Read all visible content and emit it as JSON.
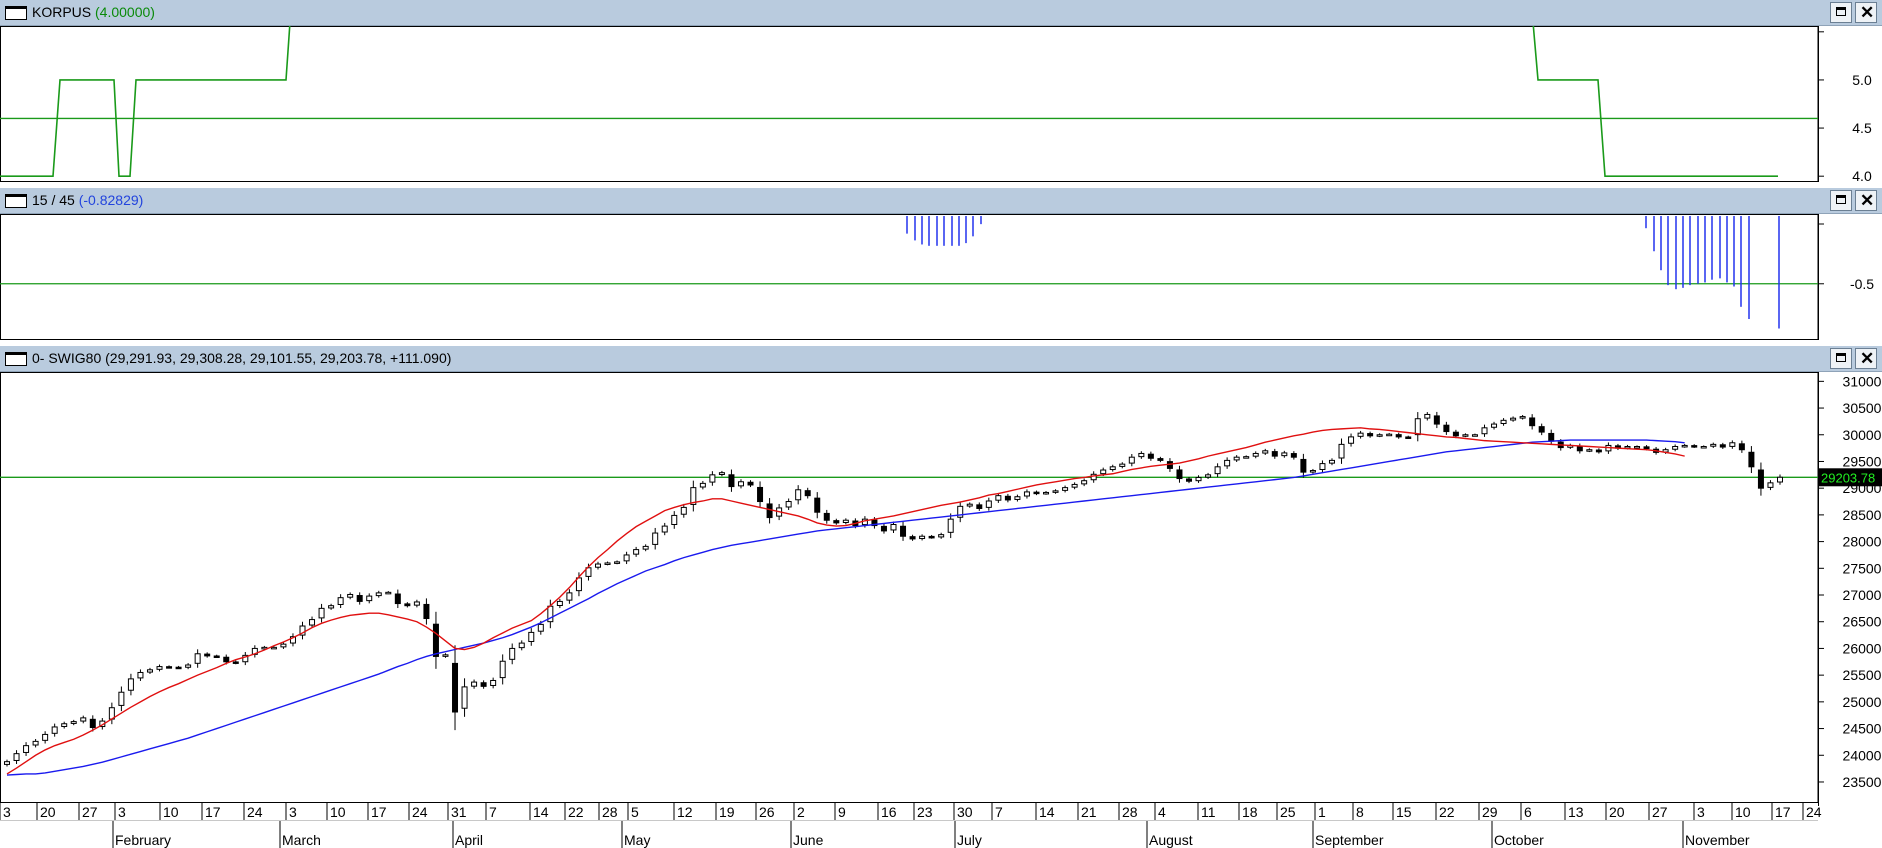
{
  "panels": {
    "korpus": {
      "title": "KORPUS",
      "value": "(4.00000)",
      "value_color": "#0a8a0a",
      "y_ticks": [
        "5.0",
        "4.5",
        "4.0"
      ]
    },
    "ratio": {
      "title": "15 / 45",
      "value": "(-0.82829)",
      "value_color": "#2244dd",
      "y_ticks": [
        "-0.5"
      ]
    },
    "price": {
      "title": "0- SWIG80 (29,291.93, 29,308.28, 29,101.55, 29,203.78, +111.090)",
      "last_value_label": "29203.78",
      "y_ticks": [
        "31000",
        "30500",
        "30000",
        "29500",
        "29000",
        "28500",
        "28000",
        "27500",
        "27000",
        "26500",
        "26000",
        "25500",
        "25000",
        "24500",
        "24000",
        "23500"
      ]
    }
  },
  "x_axis": {
    "day_ticks": [
      "3",
      "20",
      "27",
      "3",
      "10",
      "17",
      "24",
      "3",
      "10",
      "17",
      "24",
      "31",
      "7",
      "14",
      "22",
      "28",
      "5",
      "12",
      "19",
      "26",
      "2",
      "9",
      "16",
      "23",
      "30",
      "7",
      "14",
      "21",
      "28",
      "4",
      "11",
      "18",
      "25",
      "1",
      "8",
      "15",
      "22",
      "29",
      "6",
      "13",
      "20",
      "27",
      "3",
      "10",
      "17",
      "24"
    ],
    "months": [
      "February",
      "March",
      "April",
      "May",
      "June",
      "July",
      "August",
      "September",
      "October",
      "November"
    ]
  },
  "colors": {
    "korpus_line": "#1a9a1a",
    "reference_line": "#1a9a1a",
    "histogram": "#2233ee",
    "ma_fast": "#e01010",
    "ma_slow": "#1a1aee",
    "candle": "#000000",
    "last_label_bg": "#000000",
    "last_label_text": "#22ee22"
  },
  "window_buttons": {
    "maximize": "maximize-icon",
    "close": "✕"
  },
  "chart_data": [
    {
      "type": "line",
      "title": "KORPUS (4.00000)",
      "y_ticks": [
        5.0,
        4.5,
        4.0
      ],
      "ylim": [
        3.95,
        5.55
      ],
      "reference_line": 4.6,
      "segments": [
        [
          [
            0,
            4.0
          ],
          [
            53,
            4.0
          ],
          [
            60,
            5.0
          ],
          [
            114,
            5.0
          ],
          [
            119,
            4.0
          ],
          [
            130,
            4.0
          ],
          [
            136,
            5.0
          ],
          [
            286,
            5.0
          ],
          [
            290,
            5.6
          ]
        ],
        [
          [
            1533,
            5.6
          ],
          [
            1538,
            5.0
          ],
          [
            1598,
            5.0
          ],
          [
            1605,
            4.0
          ],
          [
            1778,
            4.0
          ]
        ]
      ]
    },
    {
      "type": "bar",
      "title": "15 / 45 (-0.82829)",
      "y_ticks": [
        -0.5
      ],
      "ylim": [
        -0.9,
        0.0
      ],
      "reference_line": -0.5,
      "bar_index_unit": "day_tick_offset",
      "bars": [
        {
          "t": 907,
          "v": -0.13
        },
        {
          "t": 915,
          "v": -0.18
        },
        {
          "t": 922,
          "v": -0.21
        },
        {
          "t": 929,
          "v": -0.22
        },
        {
          "t": 937,
          "v": -0.22
        },
        {
          "t": 944,
          "v": -0.22
        },
        {
          "t": 952,
          "v": -0.22
        },
        {
          "t": 959,
          "v": -0.22
        },
        {
          "t": 966,
          "v": -0.2
        },
        {
          "t": 973,
          "v": -0.15
        },
        {
          "t": 981,
          "v": -0.06
        },
        {
          "t": 1646,
          "v": -0.09
        },
        {
          "t": 1654,
          "v": -0.26
        },
        {
          "t": 1661,
          "v": -0.4
        },
        {
          "t": 1668,
          "v": -0.51
        },
        {
          "t": 1676,
          "v": -0.54
        },
        {
          "t": 1683,
          "v": -0.53
        },
        {
          "t": 1690,
          "v": -0.51
        },
        {
          "t": 1698,
          "v": -0.5
        },
        {
          "t": 1705,
          "v": -0.49
        },
        {
          "t": 1712,
          "v": -0.47
        },
        {
          "t": 1720,
          "v": -0.46
        },
        {
          "t": 1727,
          "v": -0.49
        },
        {
          "t": 1734,
          "v": -0.52
        },
        {
          "t": 1741,
          "v": -0.67
        },
        {
          "t": 1749,
          "v": -0.76
        },
        {
          "t": 1779,
          "v": -0.83
        }
      ]
    },
    {
      "type": "candlestick",
      "title": "SWIG80",
      "ylim": [
        23200,
        31100
      ],
      "y_ticks": [
        31000,
        30500,
        30000,
        29500,
        29000,
        28500,
        28000,
        27500,
        27000,
        26500,
        26000,
        25500,
        25000,
        24500,
        24000,
        23500
      ],
      "reference_line": 29203.78,
      "series_names": [
        "SWIG80"
      ],
      "close": [
        23880,
        24030,
        24180,
        24260,
        24390,
        24530,
        24590,
        24630,
        24700,
        24520,
        24640,
        24890,
        25180,
        25430,
        25550,
        25600,
        25660,
        25650,
        25640,
        25690,
        25900,
        25860,
        25850,
        25750,
        25730,
        25870,
        26000,
        26020,
        26020,
        26080,
        26220,
        26420,
        26540,
        26750,
        26800,
        26950,
        27010,
        26880,
        26980,
        27040,
        27050,
        26840,
        26800,
        26870,
        26560,
        25850,
        25880,
        24810,
        25280,
        25370,
        25290,
        25400,
        25760,
        26000,
        26100,
        26300,
        26450,
        26790,
        26880,
        27040,
        27320,
        27510,
        27580,
        27600,
        27620,
        27750,
        27850,
        27910,
        28160,
        28290,
        28490,
        28640,
        29010,
        29090,
        29250,
        29290,
        29030,
        29120,
        29060,
        28750,
        28450,
        28630,
        28750,
        28970,
        28860,
        28550,
        28400,
        28350,
        28400,
        28300,
        28420,
        28300,
        28200,
        28320,
        28100,
        28050,
        28100,
        28080,
        28130,
        28420,
        28660,
        28700,
        28620,
        28760,
        28860,
        28780,
        28840,
        28930,
        28900,
        28920,
        28950,
        29010,
        29070,
        29140,
        29260,
        29340,
        29400,
        29450,
        29580,
        29650,
        29560,
        29520,
        29370,
        29180,
        29130,
        29200,
        29250,
        29400,
        29520,
        29580,
        29590,
        29650,
        29700,
        29600,
        29660,
        29580,
        29300,
        29330,
        29460,
        29520,
        29820,
        29960,
        30030,
        29980,
        30000,
        30010,
        29960,
        29950,
        30300,
        30380,
        30200,
        30060,
        29980,
        30000,
        30000,
        30130,
        30200,
        30270,
        30310,
        30340,
        30170,
        30050,
        29880,
        29760,
        29800,
        29700,
        29720,
        29680,
        29800,
        29750,
        29780,
        29780,
        29740,
        29670,
        29720,
        29780,
        29800,
        29780,
        29780,
        29820,
        29770,
        29850,
        29720,
        29400,
        29000,
        29100,
        29203.78
      ],
      "ma_fast": [
        23650,
        23760,
        23880,
        24000,
        24100,
        24180,
        24240,
        24300,
        24380,
        24470,
        24570,
        24680,
        24790,
        24900,
        25000,
        25100,
        25190,
        25270,
        25340,
        25420,
        25500,
        25570,
        25640,
        25720,
        25790,
        25840,
        25900,
        25970,
        26050,
        26120,
        26200,
        26290,
        26390,
        26470,
        26530,
        26580,
        26620,
        26640,
        26660,
        26660,
        26630,
        26590,
        26550,
        26500,
        26400,
        26280,
        26140,
        26000,
        25980,
        26020,
        26100,
        26200,
        26290,
        26380,
        26450,
        26520,
        26650,
        26800,
        26960,
        27140,
        27340,
        27530,
        27700,
        27850,
        28010,
        28150,
        28280,
        28380,
        28480,
        28580,
        28640,
        28690,
        28730,
        28760,
        28800,
        28800,
        28760,
        28720,
        28680,
        28640,
        28600,
        28560,
        28520,
        28480,
        28420,
        28350,
        28310,
        28290,
        28300,
        28340,
        28390,
        28420,
        28450,
        28480,
        28520,
        28560,
        28600,
        28640,
        28680,
        28710,
        28740,
        28780,
        28820,
        28870,
        28900,
        28940,
        28980,
        29020,
        29060,
        29090,
        29120,
        29150,
        29180,
        29200,
        29230,
        29250,
        29270,
        29310,
        29350,
        29380,
        29410,
        29430,
        29450,
        29470,
        29510,
        29550,
        29600,
        29640,
        29680,
        29720,
        29760,
        29810,
        29860,
        29900,
        29940,
        29980,
        30010,
        30050,
        30080,
        30100,
        30110,
        30120,
        30130,
        30110,
        30100,
        30080,
        30060,
        30040,
        30020,
        30000,
        29980,
        29960,
        29950,
        29930,
        29910,
        29890,
        29880,
        29870,
        29860,
        29850,
        29840,
        29830,
        29820,
        29810,
        29800,
        29790,
        29780,
        29770,
        29760,
        29750,
        29740,
        29730,
        29720,
        29700,
        29670,
        29640,
        29600
      ],
      "ma_slow": [
        23630,
        23640,
        23650,
        23650,
        23670,
        23700,
        23730,
        23760,
        23790,
        23830,
        23870,
        23920,
        23970,
        24020,
        24070,
        24120,
        24170,
        24220,
        24270,
        24320,
        24380,
        24440,
        24500,
        24560,
        24620,
        24680,
        24740,
        24800,
        24860,
        24920,
        24980,
        25040,
        25100,
        25160,
        25220,
        25280,
        25340,
        25400,
        25460,
        25520,
        25590,
        25660,
        25720,
        25790,
        25850,
        25900,
        25940,
        25980,
        26020,
        26060,
        26100,
        26150,
        26200,
        26260,
        26330,
        26400,
        26480,
        26570,
        26660,
        26750,
        26840,
        26930,
        27030,
        27120,
        27210,
        27290,
        27370,
        27450,
        27510,
        27570,
        27640,
        27700,
        27750,
        27800,
        27850,
        27890,
        27930,
        27960,
        27990,
        28020,
        28050,
        28080,
        28110,
        28140,
        28170,
        28200,
        28220,
        28240,
        28260,
        28280,
        28300,
        28320,
        28340,
        28360,
        28380,
        28400,
        28420,
        28440,
        28460,
        28480,
        28500,
        28520,
        28540,
        28560,
        28580,
        28600,
        28620,
        28640,
        28660,
        28680,
        28700,
        28720,
        28740,
        28760,
        28780,
        28800,
        28820,
        28840,
        28860,
        28880,
        28900,
        28920,
        28940,
        28960,
        28980,
        29000,
        29020,
        29040,
        29060,
        29080,
        29100,
        29120,
        29140,
        29160,
        29180,
        29200,
        29230,
        29260,
        29290,
        29320,
        29350,
        29380,
        29410,
        29440,
        29470,
        29500,
        29530,
        29560,
        29590,
        29620,
        29650,
        29680,
        29700,
        29720,
        29740,
        29760,
        29780,
        29800,
        29820,
        29840,
        29860,
        29870,
        29880,
        29890,
        29900,
        29900,
        29900,
        29900,
        29900,
        29900,
        29900,
        29900,
        29900,
        29890,
        29880,
        29870,
        29850
      ]
    }
  ]
}
